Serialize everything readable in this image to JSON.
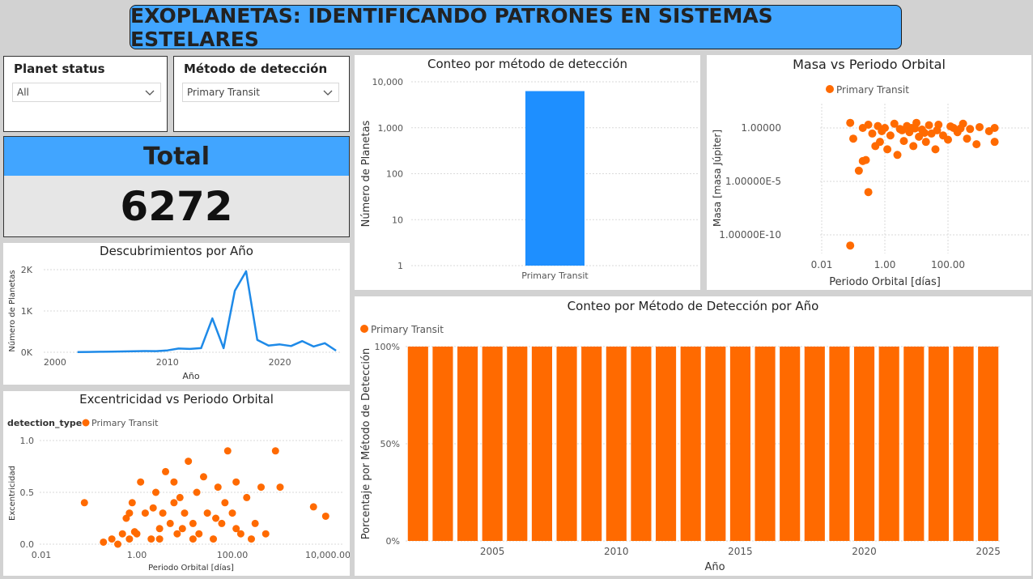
{
  "header": {
    "title": "EXOPLANETAS: IDENTIFICANDO PATRONES EN SISTEMAS ESTELARES"
  },
  "slicers": {
    "planet_status": {
      "label": "Planet status",
      "value": "All"
    },
    "metodo": {
      "label": "Método de detección",
      "value": "Primary Transit"
    }
  },
  "card": {
    "title": "Total",
    "value": "6272"
  },
  "colors": {
    "blue": "#1e8fff",
    "orange": "#ff6a00",
    "line": "#1e8ae8"
  },
  "icons": {
    "dropdown": "chevron-down-icon",
    "legend": "circle-dot-icon"
  },
  "chart_data": [
    {
      "id": "conteo",
      "type": "bar",
      "title": "Conteo por método de detección",
      "ylabel": "Número de Planetas",
      "xlabel": "",
      "yscale": "log",
      "ylim": [
        1,
        10000
      ],
      "yticks": [
        "10,000",
        "1,000",
        "100",
        "10",
        "1"
      ],
      "categories": [
        "Primary Transit"
      ],
      "values": [
        6272
      ]
    },
    {
      "id": "masa",
      "type": "scatter",
      "title": "Masa vs Periodo Orbital",
      "xlabel": "Periodo Orbital [días]",
      "ylabel": "Masa [masa Júpiter]",
      "xscale": "log",
      "yscale": "log",
      "xticks": [
        "0.01",
        "1.00",
        "100.00"
      ],
      "yticks": [
        "1.00000",
        "1.00000E-5",
        "1.00000E-10"
      ],
      "legend": [
        "Primary Transit"
      ],
      "points": [
        [
          0.08,
          3.0
        ],
        [
          0.1,
          0.1
        ],
        [
          0.2,
          1.0
        ],
        [
          0.25,
          0.001
        ],
        [
          0.3,
          2.0
        ],
        [
          0.4,
          0.3
        ],
        [
          0.5,
          0.02
        ],
        [
          0.6,
          1.5
        ],
        [
          0.7,
          0.05
        ],
        [
          0.8,
          0.5
        ],
        [
          1.0,
          1.0
        ],
        [
          1.2,
          0.01
        ],
        [
          1.5,
          0.2
        ],
        [
          2.0,
          2.5
        ],
        [
          2.5,
          0.003
        ],
        [
          3.0,
          0.8
        ],
        [
          4.0,
          0.06
        ],
        [
          5.0,
          1.5
        ],
        [
          6.0,
          0.4
        ],
        [
          8.0,
          0.02
        ],
        [
          10.0,
          3.0
        ],
        [
          12.0,
          0.15
        ],
        [
          15.0,
          0.7
        ],
        [
          20.0,
          0.05
        ],
        [
          25.0,
          1.8
        ],
        [
          30.0,
          0.3
        ],
        [
          40.0,
          0.01
        ],
        [
          50.0,
          2.0
        ],
        [
          70.0,
          0.2
        ],
        [
          100.0,
          0.08
        ],
        [
          150.0,
          1.0
        ],
        [
          200.0,
          0.4
        ],
        [
          300.0,
          2.5
        ],
        [
          400.0,
          0.1
        ],
        [
          500.0,
          0.8
        ],
        [
          800.0,
          0.03
        ],
        [
          1000.0,
          1.2
        ],
        [
          2000.0,
          0.5
        ],
        [
          3000.0,
          0.05
        ],
        [
          0.15,
          0.0001
        ],
        [
          0.3,
          1e-06
        ],
        [
          3.5,
          0.6
        ],
        [
          7.0,
          1.0
        ],
        [
          9.0,
          0.9
        ],
        [
          18.0,
          0.35
        ],
        [
          45.0,
          0.6
        ],
        [
          120.0,
          1.4
        ],
        [
          250.0,
          0.9
        ],
        [
          0.08,
          1e-11
        ],
        [
          0.2,
          0.0008
        ],
        [
          3000.0,
          1.0
        ]
      ]
    },
    {
      "id": "descubrimientos",
      "type": "line",
      "title": "Descubrimientos por Año",
      "xlabel": "Año",
      "ylabel": "Número de Planetas",
      "xlim": [
        1999,
        2025.5
      ],
      "ylim": [
        0,
        2000
      ],
      "xticks": [
        "2000",
        "2010",
        "2020"
      ],
      "yticks": [
        "0K",
        "1K",
        "2K"
      ],
      "x": [
        2002,
        2003,
        2004,
        2005,
        2006,
        2007,
        2008,
        2009,
        2010,
        2011,
        2012,
        2013,
        2014,
        2015,
        2016,
        2017,
        2018,
        2019,
        2020,
        2021,
        2022,
        2023,
        2024,
        2025
      ],
      "values": [
        5,
        8,
        12,
        15,
        20,
        25,
        30,
        28,
        45,
        90,
        80,
        100,
        820,
        100,
        1490,
        1960,
        300,
        160,
        190,
        150,
        270,
        140,
        220,
        40
      ]
    },
    {
      "id": "excentricidad",
      "type": "scatter",
      "title": "Excentricidad vs Periodo Orbital",
      "xlabel": "Periodo Orbital [días]",
      "ylabel": "Excentricidad",
      "xscale": "log",
      "ylim": [
        0,
        1
      ],
      "xticks": [
        "0.01",
        "1.00",
        "100.00",
        "10,000.00"
      ],
      "yticks": [
        "1.0",
        "0.5",
        "0.0"
      ],
      "legend_title": "detection_type",
      "legend": [
        "Primary Transit"
      ],
      "points": [
        [
          0.08,
          0.4
        ],
        [
          0.2,
          0.02
        ],
        [
          0.3,
          0.05
        ],
        [
          0.5,
          0.1
        ],
        [
          0.6,
          0.25
        ],
        [
          0.7,
          0.05
        ],
        [
          0.8,
          0.4
        ],
        [
          1.0,
          0.1
        ],
        [
          1.2,
          0.6
        ],
        [
          1.5,
          0.3
        ],
        [
          2.0,
          0.05
        ],
        [
          2.5,
          0.5
        ],
        [
          3.0,
          0.15
        ],
        [
          3.5,
          0.3
        ],
        [
          4.0,
          0.7
        ],
        [
          5.0,
          0.2
        ],
        [
          6.0,
          0.4
        ],
        [
          7.0,
          0.1
        ],
        [
          8.0,
          0.45
        ],
        [
          10.0,
          0.3
        ],
        [
          12.0,
          0.8
        ],
        [
          15.0,
          0.2
        ],
        [
          18.0,
          0.5
        ],
        [
          20.0,
          0.1
        ],
        [
          25.0,
          0.65
        ],
        [
          30.0,
          0.3
        ],
        [
          40.0,
          0.05
        ],
        [
          50.0,
          0.55
        ],
        [
          60.0,
          0.2
        ],
        [
          70.0,
          0.4
        ],
        [
          80.0,
          0.9
        ],
        [
          100.0,
          0.3
        ],
        [
          120.0,
          0.6
        ],
        [
          150.0,
          0.1
        ],
        [
          200.0,
          0.45
        ],
        [
          300.0,
          0.2
        ],
        [
          400.0,
          0.55
        ],
        [
          500.0,
          0.1
        ],
        [
          800.0,
          0.9
        ],
        [
          1000.0,
          0.55
        ],
        [
          5000.0,
          0.36
        ],
        [
          9000.0,
          0.27
        ],
        [
          0.4,
          0.0
        ],
        [
          3.0,
          0.05
        ],
        [
          9.0,
          0.15
        ],
        [
          2.2,
          0.35
        ],
        [
          45.0,
          0.25
        ],
        [
          0.9,
          0.12
        ],
        [
          15.0,
          0.05
        ],
        [
          120.0,
          0.15
        ],
        [
          0.7,
          0.3
        ],
        [
          6.0,
          0.6
        ],
        [
          250.0,
          0.05
        ]
      ]
    },
    {
      "id": "conteo_anio",
      "type": "bar",
      "title": "Conteo por Método de Detección por Año",
      "xlabel": "Año",
      "ylabel": "Porcentaje por Método de Detección",
      "ylim": [
        0,
        100
      ],
      "yticks": [
        "100%",
        "50%",
        "0%"
      ],
      "xticks": [
        "2005",
        "2010",
        "2015",
        "2020",
        "2025"
      ],
      "legend": [
        "Primary Transit"
      ],
      "x": [
        2002,
        2003,
        2004,
        2005,
        2006,
        2007,
        2008,
        2009,
        2010,
        2011,
        2012,
        2013,
        2014,
        2015,
        2016,
        2017,
        2018,
        2019,
        2020,
        2021,
        2022,
        2023,
        2024,
        2025
      ],
      "values": [
        100,
        100,
        100,
        100,
        100,
        100,
        100,
        100,
        100,
        100,
        100,
        100,
        100,
        100,
        100,
        100,
        100,
        100,
        100,
        100,
        100,
        100,
        100,
        100
      ]
    }
  ]
}
